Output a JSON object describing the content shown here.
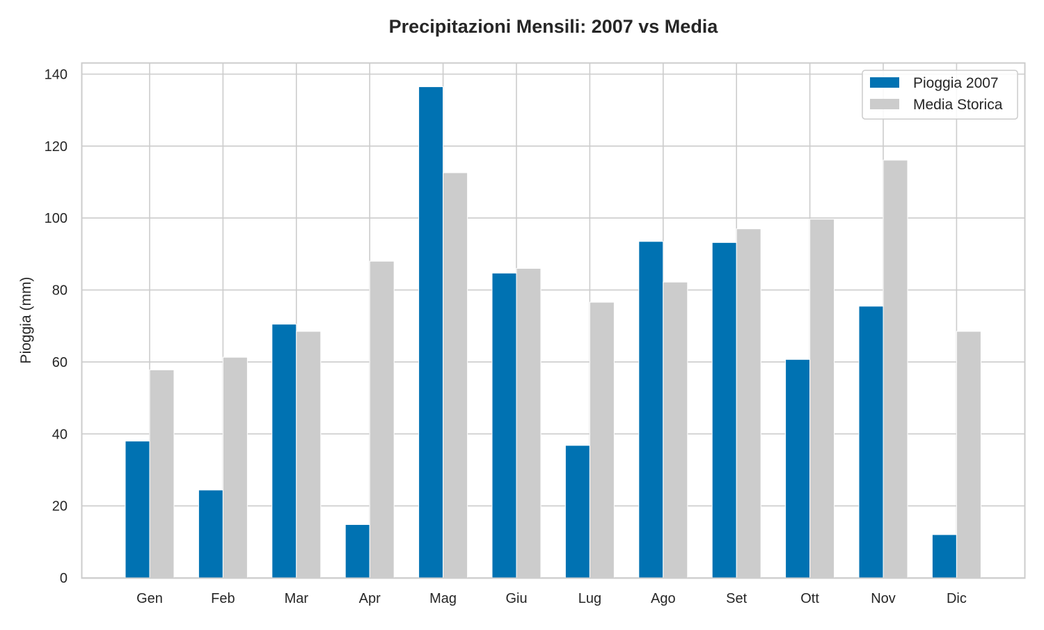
{
  "chart_data": {
    "type": "bar",
    "title": "Precipitazioni Mensili: 2007 vs Media",
    "xlabel": "",
    "ylabel": "Pioggia (mm)",
    "ylim": [
      0,
      143
    ],
    "yticks": [
      0,
      20,
      40,
      60,
      80,
      100,
      120,
      140
    ],
    "categories": [
      "Gen",
      "Feb",
      "Mar",
      "Apr",
      "Mag",
      "Giu",
      "Lug",
      "Ago",
      "Set",
      "Ott",
      "Nov",
      "Dic"
    ],
    "series": [
      {
        "name": "Pioggia 2007",
        "color": "#0072b2",
        "values": [
          38,
          24.4,
          70.5,
          14.8,
          136.5,
          84.7,
          36.8,
          93.5,
          93.2,
          60.7,
          75.5,
          12
        ]
      },
      {
        "name": "Media Storica",
        "color": "#cccccc",
        "values": [
          57.8,
          61.3,
          68.5,
          88,
          112.6,
          86,
          76.6,
          82.2,
          97,
          99.7,
          116.1,
          68.5
        ]
      }
    ],
    "grid": true,
    "legend": "top-right"
  }
}
